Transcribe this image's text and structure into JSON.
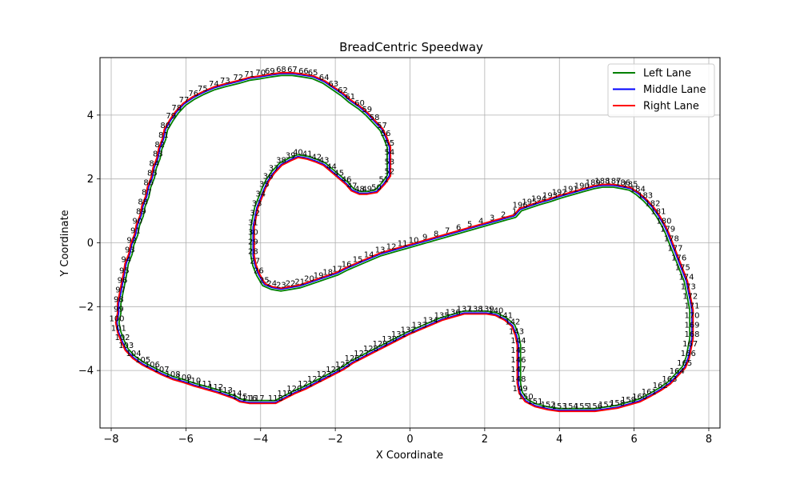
{
  "chart_data": {
    "type": "line",
    "title": "BreadCentric Speedway",
    "xlabel": "X Coordinate",
    "ylabel": "Y Coordinate",
    "xlim": [
      -8.3,
      8.3
    ],
    "ylim": [
      -5.8,
      5.8
    ],
    "xticks": [
      -8,
      -6,
      -4,
      -2,
      0,
      2,
      4,
      6,
      8
    ],
    "yticks": [
      -4,
      -2,
      0,
      2,
      4
    ],
    "grid": true,
    "legend_position": "top-right",
    "series": [
      {
        "name": "Left Lane",
        "color": "#008000"
      },
      {
        "name": "Middle Lane",
        "color": "#0000ff"
      },
      {
        "name": "Right Lane",
        "color": "#ff0000"
      }
    ],
    "waypoints": [
      {
        "id": 1,
        "x": 2.8,
        "y": 0.85
      },
      {
        "id": 2,
        "x": 2.5,
        "y": 0.75
      },
      {
        "id": 3,
        "x": 2.2,
        "y": 0.65
      },
      {
        "id": 4,
        "x": 1.9,
        "y": 0.55
      },
      {
        "id": 5,
        "x": 1.6,
        "y": 0.45
      },
      {
        "id": 6,
        "x": 1.3,
        "y": 0.35
      },
      {
        "id": 7,
        "x": 1.0,
        "y": 0.25
      },
      {
        "id": 8,
        "x": 0.7,
        "y": 0.15
      },
      {
        "id": 9,
        "x": 0.4,
        "y": 0.05
      },
      {
        "id": 10,
        "x": 0.1,
        "y": -0.05
      },
      {
        "id": 11,
        "x": -0.2,
        "y": -0.15
      },
      {
        "id": 12,
        "x": -0.5,
        "y": -0.25
      },
      {
        "id": 13,
        "x": -0.8,
        "y": -0.35
      },
      {
        "id": 14,
        "x": -1.1,
        "y": -0.5
      },
      {
        "id": 15,
        "x": -1.4,
        "y": -0.65
      },
      {
        "id": 16,
        "x": -1.7,
        "y": -0.8
      },
      {
        "id": 17,
        "x": -1.95,
        "y": -0.95
      },
      {
        "id": 18,
        "x": -2.2,
        "y": -1.05
      },
      {
        "id": 19,
        "x": -2.45,
        "y": -1.15
      },
      {
        "id": 20,
        "x": -2.7,
        "y": -1.25
      },
      {
        "id": 21,
        "x": -2.95,
        "y": -1.35
      },
      {
        "id": 22,
        "x": -3.2,
        "y": -1.4
      },
      {
        "id": 23,
        "x": -3.45,
        "y": -1.45
      },
      {
        "id": 24,
        "x": -3.7,
        "y": -1.4
      },
      {
        "id": 25,
        "x": -3.9,
        "y": -1.3
      },
      {
        "id": 26,
        "x": -4.05,
        "y": -1.0
      },
      {
        "id": 27,
        "x": -4.15,
        "y": -0.7
      },
      {
        "id": 28,
        "x": -4.2,
        "y": -0.4
      },
      {
        "id": 29,
        "x": -4.2,
        "y": -0.1
      },
      {
        "id": 30,
        "x": -4.2,
        "y": 0.2
      },
      {
        "id": 31,
        "x": -4.2,
        "y": 0.5
      },
      {
        "id": 32,
        "x": -4.15,
        "y": 0.8
      },
      {
        "id": 33,
        "x": -4.1,
        "y": 1.1
      },
      {
        "id": 34,
        "x": -4.0,
        "y": 1.4
      },
      {
        "id": 35,
        "x": -3.9,
        "y": 1.7
      },
      {
        "id": 36,
        "x": -3.8,
        "y": 1.95
      },
      {
        "id": 37,
        "x": -3.65,
        "y": 2.2
      },
      {
        "id": 38,
        "x": -3.45,
        "y": 2.45
      },
      {
        "id": 39,
        "x": -3.2,
        "y": 2.6
      },
      {
        "id": 40,
        "x": -3.0,
        "y": 2.7
      },
      {
        "id": 41,
        "x": -2.75,
        "y": 2.65
      },
      {
        "id": 42,
        "x": -2.5,
        "y": 2.55
      },
      {
        "id": 43,
        "x": -2.3,
        "y": 2.45
      },
      {
        "id": 44,
        "x": -2.1,
        "y": 2.25
      },
      {
        "id": 45,
        "x": -1.9,
        "y": 2.05
      },
      {
        "id": 46,
        "x": -1.7,
        "y": 1.85
      },
      {
        "id": 47,
        "x": -1.55,
        "y": 1.65
      },
      {
        "id": 48,
        "x": -1.35,
        "y": 1.55
      },
      {
        "id": 49,
        "x": -1.15,
        "y": 1.55
      },
      {
        "id": 50,
        "x": -0.9,
        "y": 1.6
      },
      {
        "id": 51,
        "x": -0.7,
        "y": 1.85
      },
      {
        "id": 52,
        "x": -0.55,
        "y": 2.1
      },
      {
        "id": 53,
        "x": -0.55,
        "y": 2.4
      },
      {
        "id": 54,
        "x": -0.55,
        "y": 2.7
      },
      {
        "id": 55,
        "x": -0.55,
        "y": 3.0
      },
      {
        "id": 56,
        "x": -0.65,
        "y": 3.3
      },
      {
        "id": 57,
        "x": -0.75,
        "y": 3.55
      },
      {
        "id": 58,
        "x": -0.95,
        "y": 3.8
      },
      {
        "id": 59,
        "x": -1.15,
        "y": 4.05
      },
      {
        "id": 60,
        "x": -1.35,
        "y": 4.25
      },
      {
        "id": 61,
        "x": -1.6,
        "y": 4.45
      },
      {
        "id": 62,
        "x": -1.8,
        "y": 4.65
      },
      {
        "id": 63,
        "x": -2.05,
        "y": 4.85
      },
      {
        "id": 64,
        "x": -2.3,
        "y": 5.05
      },
      {
        "id": 65,
        "x": -2.6,
        "y": 5.2
      },
      {
        "id": 66,
        "x": -2.85,
        "y": 5.25
      },
      {
        "id": 67,
        "x": -3.15,
        "y": 5.3
      },
      {
        "id": 68,
        "x": -3.45,
        "y": 5.3
      },
      {
        "id": 69,
        "x": -3.75,
        "y": 5.25
      },
      {
        "id": 70,
        "x": -4.0,
        "y": 5.2
      },
      {
        "id": 71,
        "x": -4.3,
        "y": 5.15
      },
      {
        "id": 72,
        "x": -4.6,
        "y": 5.05
      },
      {
        "id": 73,
        "x": -4.95,
        "y": 4.95
      },
      {
        "id": 74,
        "x": -5.25,
        "y": 4.85
      },
      {
        "id": 75,
        "x": -5.55,
        "y": 4.7
      },
      {
        "id": 76,
        "x": -5.8,
        "y": 4.55
      },
      {
        "id": 77,
        "x": -6.05,
        "y": 4.35
      },
      {
        "id": 78,
        "x": -6.25,
        "y": 4.1
      },
      {
        "id": 79,
        "x": -6.4,
        "y": 3.85
      },
      {
        "id": 80,
        "x": -6.55,
        "y": 3.55
      },
      {
        "id": 81,
        "x": -6.6,
        "y": 3.25
      },
      {
        "id": 82,
        "x": -6.7,
        "y": 2.95
      },
      {
        "id": 83,
        "x": -6.75,
        "y": 2.65
      },
      {
        "id": 84,
        "x": -6.85,
        "y": 2.35
      },
      {
        "id": 85,
        "x": -6.9,
        "y": 2.05
      },
      {
        "id": 86,
        "x": -7.0,
        "y": 1.75
      },
      {
        "id": 87,
        "x": -7.05,
        "y": 1.45
      },
      {
        "id": 88,
        "x": -7.15,
        "y": 1.15
      },
      {
        "id": 89,
        "x": -7.2,
        "y": 0.85
      },
      {
        "id": 90,
        "x": -7.3,
        "y": 0.55
      },
      {
        "id": 91,
        "x": -7.35,
        "y": 0.25
      },
      {
        "id": 92,
        "x": -7.45,
        "y": -0.05
      },
      {
        "id": 93,
        "x": -7.5,
        "y": -0.35
      },
      {
        "id": 94,
        "x": -7.6,
        "y": -0.65
      },
      {
        "id": 95,
        "x": -7.65,
        "y": -1.0
      },
      {
        "id": 96,
        "x": -7.7,
        "y": -1.3
      },
      {
        "id": 97,
        "x": -7.75,
        "y": -1.6
      },
      {
        "id": 98,
        "x": -7.8,
        "y": -1.9
      },
      {
        "id": 99,
        "x": -7.8,
        "y": -2.2
      },
      {
        "id": 100,
        "x": -7.85,
        "y": -2.5
      },
      {
        "id": 101,
        "x": -7.8,
        "y": -2.8
      },
      {
        "id": 102,
        "x": -7.7,
        "y": -3.1
      },
      {
        "id": 103,
        "x": -7.6,
        "y": -3.35
      },
      {
        "id": 104,
        "x": -7.4,
        "y": -3.6
      },
      {
        "id": 105,
        "x": -7.15,
        "y": -3.8
      },
      {
        "id": 106,
        "x": -6.9,
        "y": -3.95
      },
      {
        "id": 107,
        "x": -6.65,
        "y": -4.1
      },
      {
        "id": 108,
        "x": -6.35,
        "y": -4.25
      },
      {
        "id": 109,
        "x": -6.05,
        "y": -4.35
      },
      {
        "id": 110,
        "x": -5.8,
        "y": -4.45
      },
      {
        "id": 111,
        "x": -5.5,
        "y": -4.55
      },
      {
        "id": 112,
        "x": -5.2,
        "y": -4.65
      },
      {
        "id": 113,
        "x": -4.95,
        "y": -4.75
      },
      {
        "id": 114,
        "x": -4.7,
        "y": -4.85
      },
      {
        "id": 115,
        "x": -4.55,
        "y": -4.95
      },
      {
        "id": 116,
        "x": -4.3,
        "y": -5.0
      },
      {
        "id": 117,
        "x": -4.1,
        "y": -5.0
      },
      {
        "id": 118,
        "x": -3.6,
        "y": -5.0
      },
      {
        "id": 119,
        "x": -3.35,
        "y": -4.85
      },
      {
        "id": 120,
        "x": -3.1,
        "y": -4.7
      },
      {
        "id": 121,
        "x": -2.8,
        "y": -4.55
      },
      {
        "id": 122,
        "x": -2.55,
        "y": -4.4
      },
      {
        "id": 123,
        "x": -2.3,
        "y": -4.25
      },
      {
        "id": 124,
        "x": -2.05,
        "y": -4.1
      },
      {
        "id": 125,
        "x": -1.8,
        "y": -3.95
      },
      {
        "id": 126,
        "x": -1.55,
        "y": -3.75
      },
      {
        "id": 127,
        "x": -1.3,
        "y": -3.6
      },
      {
        "id": 128,
        "x": -1.05,
        "y": -3.45
      },
      {
        "id": 129,
        "x": -0.8,
        "y": -3.3
      },
      {
        "id": 130,
        "x": -0.55,
        "y": -3.15
      },
      {
        "id": 131,
        "x": -0.3,
        "y": -3.0
      },
      {
        "id": 132,
        "x": -0.05,
        "y": -2.85
      },
      {
        "id": 133,
        "x": 0.25,
        "y": -2.7
      },
      {
        "id": 134,
        "x": 0.55,
        "y": -2.55
      },
      {
        "id": 135,
        "x": 0.85,
        "y": -2.4
      },
      {
        "id": 136,
        "x": 1.15,
        "y": -2.3
      },
      {
        "id": 137,
        "x": 1.45,
        "y": -2.2
      },
      {
        "id": 138,
        "x": 1.75,
        "y": -2.2
      },
      {
        "id": 139,
        "x": 2.05,
        "y": -2.2
      },
      {
        "id": 140,
        "x": 2.3,
        "y": -2.25
      },
      {
        "id": 141,
        "x": 2.55,
        "y": -2.4
      },
      {
        "id": 142,
        "x": 2.75,
        "y": -2.6
      },
      {
        "id": 143,
        "x": 2.85,
        "y": -2.9
      },
      {
        "id": 144,
        "x": 2.9,
        "y": -3.2
      },
      {
        "id": 145,
        "x": 2.9,
        "y": -3.5
      },
      {
        "id": 146,
        "x": 2.9,
        "y": -3.8
      },
      {
        "id": 147,
        "x": 2.9,
        "y": -4.1
      },
      {
        "id": 148,
        "x": 2.9,
        "y": -4.4
      },
      {
        "id": 149,
        "x": 2.95,
        "y": -4.7
      },
      {
        "id": 150,
        "x": 3.1,
        "y": -4.95
      },
      {
        "id": 151,
        "x": 3.35,
        "y": -5.1
      },
      {
        "id": 152,
        "x": 3.7,
        "y": -5.2
      },
      {
        "id": 153,
        "x": 4.0,
        "y": -5.25
      },
      {
        "id": 154,
        "x": 4.3,
        "y": -5.25
      },
      {
        "id": 155,
        "x": 4.6,
        "y": -5.25
      },
      {
        "id": 156,
        "x": 4.95,
        "y": -5.25
      },
      {
        "id": 157,
        "x": 5.25,
        "y": -5.2
      },
      {
        "id": 158,
        "x": 5.55,
        "y": -5.15
      },
      {
        "id": 159,
        "x": 5.85,
        "y": -5.05
      },
      {
        "id": 160,
        "x": 6.15,
        "y": -4.95
      },
      {
        "id": 161,
        "x": 6.4,
        "y": -4.8
      },
      {
        "id": 162,
        "x": 6.7,
        "y": -4.6
      },
      {
        "id": 163,
        "x": 6.95,
        "y": -4.4
      },
      {
        "id": 164,
        "x": 7.15,
        "y": -4.15
      },
      {
        "id": 165,
        "x": 7.35,
        "y": -3.9
      },
      {
        "id": 166,
        "x": 7.45,
        "y": -3.6
      },
      {
        "id": 167,
        "x": 7.5,
        "y": -3.3
      },
      {
        "id": 168,
        "x": 7.55,
        "y": -3.0
      },
      {
        "id": 169,
        "x": 7.55,
        "y": -2.7
      },
      {
        "id": 170,
        "x": 7.55,
        "y": -2.4
      },
      {
        "id": 171,
        "x": 7.55,
        "y": -2.1
      },
      {
        "id": 172,
        "x": 7.5,
        "y": -1.8
      },
      {
        "id": 173,
        "x": 7.45,
        "y": -1.5
      },
      {
        "id": 174,
        "x": 7.4,
        "y": -1.2
      },
      {
        "id": 175,
        "x": 7.3,
        "y": -0.9
      },
      {
        "id": 176,
        "x": 7.2,
        "y": -0.6
      },
      {
        "id": 177,
        "x": 7.1,
        "y": -0.3
      },
      {
        "id": 178,
        "x": 7.0,
        "y": 0.0
      },
      {
        "id": 179,
        "x": 6.9,
        "y": 0.3
      },
      {
        "id": 180,
        "x": 6.8,
        "y": 0.55
      },
      {
        "id": 181,
        "x": 6.65,
        "y": 0.85
      },
      {
        "id": 182,
        "x": 6.5,
        "y": 1.1
      },
      {
        "id": 183,
        "x": 6.3,
        "y": 1.35
      },
      {
        "id": 184,
        "x": 6.1,
        "y": 1.55
      },
      {
        "id": 185,
        "x": 5.9,
        "y": 1.7
      },
      {
        "id": 186,
        "x": 5.7,
        "y": 1.75
      },
      {
        "id": 187,
        "x": 5.45,
        "y": 1.8
      },
      {
        "id": 188,
        "x": 5.15,
        "y": 1.8
      },
      {
        "id": 189,
        "x": 4.9,
        "y": 1.75
      },
      {
        "id": 190,
        "x": 4.6,
        "y": 1.65
      },
      {
        "id": 191,
        "x": 4.3,
        "y": 1.55
      },
      {
        "id": 192,
        "x": 4.0,
        "y": 1.45
      },
      {
        "id": 193,
        "x": 3.75,
        "y": 1.35
      },
      {
        "id": 194,
        "x": 3.45,
        "y": 1.25
      },
      {
        "id": 195,
        "x": 3.2,
        "y": 1.15
      },
      {
        "id": 196,
        "x": 2.95,
        "y": 1.05
      }
    ]
  }
}
